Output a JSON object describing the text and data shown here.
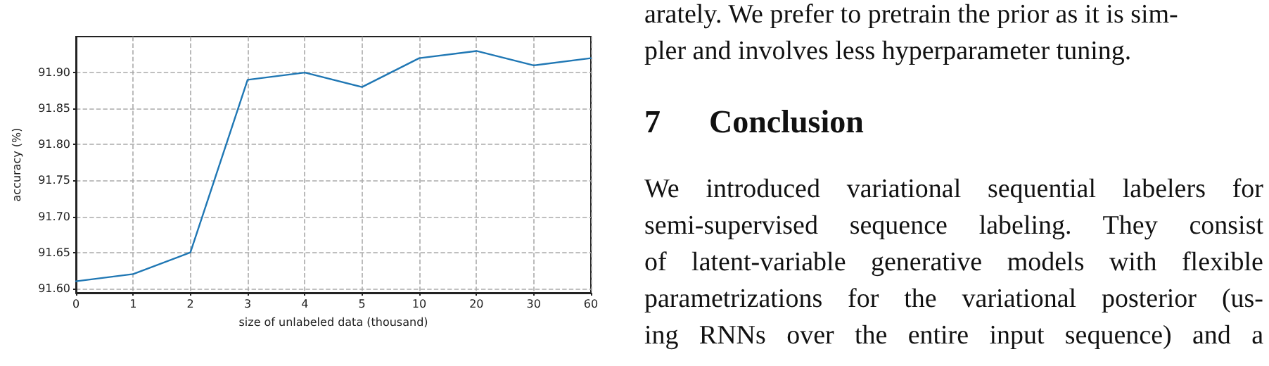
{
  "chart_data": {
    "type": "line",
    "xlabel": "size of unlabeled data (thousand)",
    "ylabel": "accuracy (%)",
    "categories": [
      "0",
      "1",
      "2",
      "3",
      "4",
      "5",
      "10",
      "20",
      "30",
      "60"
    ],
    "series": [
      {
        "color": "#1f77b4",
        "values": [
          91.61,
          91.62,
          91.65,
          91.89,
          91.9,
          91.88,
          91.92,
          91.93,
          91.91,
          91.92
        ]
      }
    ],
    "ylim": [
      91.594,
      91.95
    ],
    "yticks": [
      {
        "value": 91.6,
        "label": "91.60"
      },
      {
        "value": 91.65,
        "label": "91.65"
      },
      {
        "value": 91.7,
        "label": "91.70"
      },
      {
        "value": 91.75,
        "label": "91.75"
      },
      {
        "value": 91.8,
        "label": "91.80"
      },
      {
        "value": 91.85,
        "label": "91.85"
      },
      {
        "value": 91.9,
        "label": "91.90"
      }
    ],
    "grid": true,
    "marker": "none",
    "line_style": "solid",
    "annotations": [
      "arately. We prefer to pretrain the prior as it is sim-",
      "pler and involves less hyperparameter tuning.",
      "7  Conclusion",
      "We introduced variational sequential labelers for",
      "semi-supervised sequence labeling.  They consist",
      "of latent-variable generative models with flexible",
      "parametrizations for the variational posterior (us-",
      "ing RNNs over the entire input sequence) and a"
    ]
  }
}
